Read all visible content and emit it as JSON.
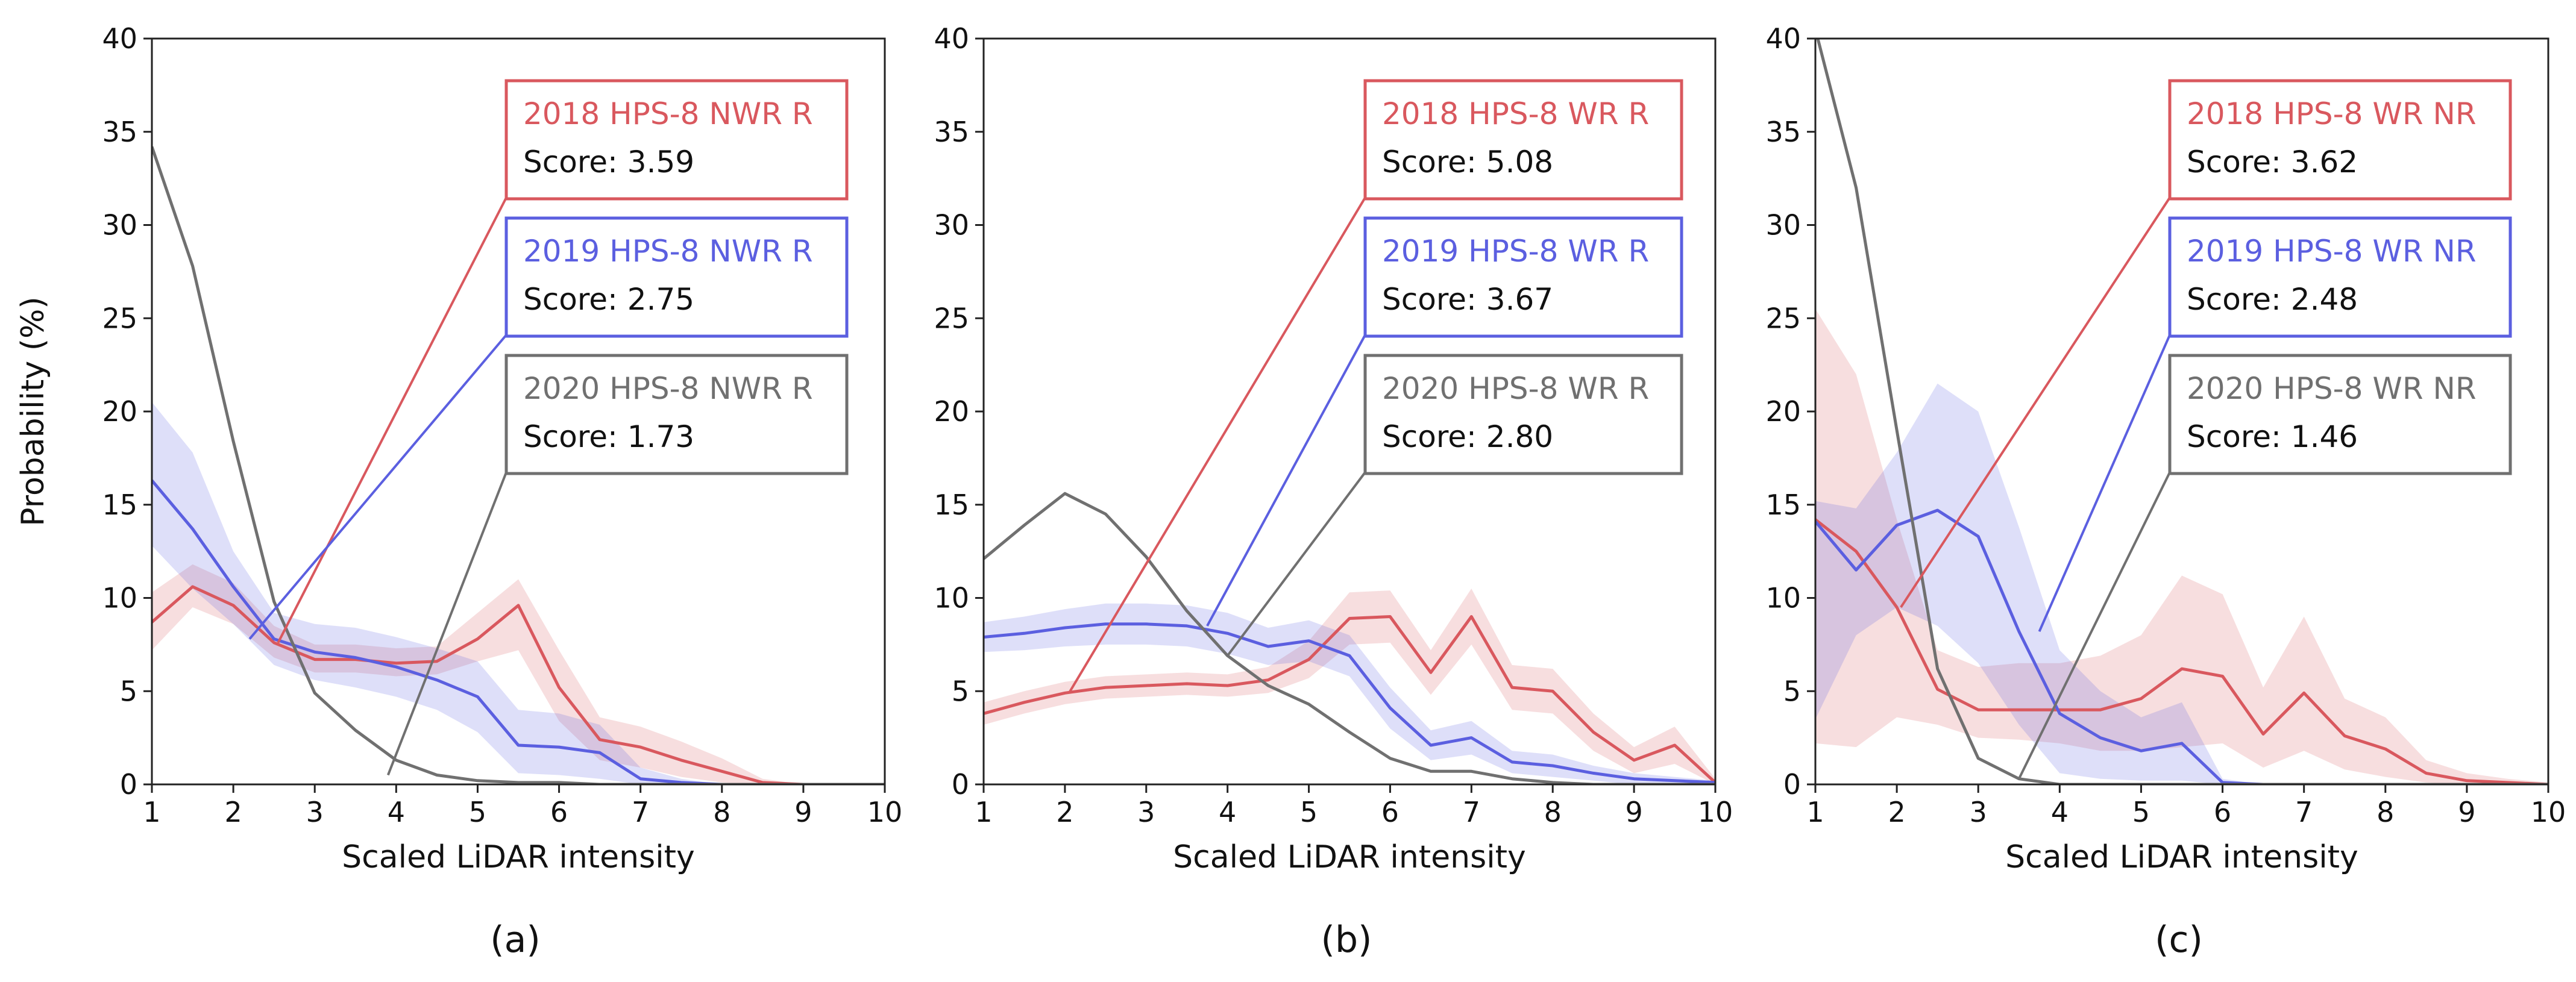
{
  "chart_data": [
    {
      "type": "line",
      "panel_label": "(a)",
      "xlabel": "Scaled LiDAR intensity",
      "ylabel": "Probability (%)",
      "xlim": [
        1,
        10
      ],
      "ylim": [
        0,
        40
      ],
      "x_ticks": [
        1,
        2,
        3,
        4,
        5,
        6,
        7,
        8,
        9,
        10
      ],
      "y_ticks": [
        0,
        5,
        10,
        15,
        20,
        25,
        30,
        35,
        40
      ],
      "x": [
        1,
        1.5,
        2,
        2.5,
        3,
        3.5,
        4,
        4.5,
        5,
        5.5,
        6,
        6.5,
        7,
        7.5,
        8,
        8.5,
        9,
        9.5,
        10
      ],
      "series": [
        {
          "name": "2018 HPS-8 NWR R",
          "score_label": "Score: 3.59",
          "color": "#d9585e",
          "values": [
            8.7,
            10.6,
            9.6,
            7.6,
            6.7,
            6.7,
            6.5,
            6.6,
            7.8,
            9.6,
            5.2,
            2.4,
            2.0,
            1.3,
            0.7,
            0.1,
            0.0,
            0.0,
            0.0
          ],
          "band_low": [
            7.2,
            9.5,
            8.6,
            6.8,
            6.0,
            6.0,
            5.8,
            5.9,
            6.6,
            7.2,
            3.4,
            1.3,
            0.9,
            0.4,
            0.1,
            0.0,
            0.0,
            0.0,
            0.0
          ],
          "band_high": [
            10.3,
            11.8,
            10.8,
            8.5,
            7.5,
            7.5,
            7.3,
            7.4,
            9.2,
            11.0,
            7.2,
            3.6,
            3.1,
            2.3,
            1.4,
            0.3,
            0.0,
            0.0,
            0.0
          ]
        },
        {
          "name": "2019 HPS-8 NWR R",
          "score_label": "Score: 2.75",
          "color": "#5b5fe0",
          "values": [
            16.3,
            13.7,
            10.6,
            7.8,
            7.1,
            6.8,
            6.3,
            5.6,
            4.7,
            2.1,
            2.0,
            1.7,
            0.3,
            0.1,
            0.0,
            0.0,
            0.0,
            0.0,
            0.0
          ],
          "band_low": [
            12.8,
            10.5,
            8.6,
            6.4,
            5.6,
            5.2,
            4.7,
            4.0,
            2.8,
            0.6,
            0.5,
            0.3,
            0.0,
            0.0,
            0.0,
            0.0,
            0.0,
            0.0,
            0.0
          ],
          "band_high": [
            20.5,
            17.8,
            12.5,
            9.2,
            8.6,
            8.4,
            7.9,
            7.3,
            6.6,
            4.0,
            3.8,
            3.2,
            0.9,
            0.3,
            0.0,
            0.0,
            0.0,
            0.0,
            0.0
          ]
        },
        {
          "name": "2020 HPS-8 NWR R",
          "score_label": "Score: 1.73",
          "color": "#707070",
          "values": [
            34.2,
            27.8,
            18.4,
            9.8,
            4.9,
            2.9,
            1.3,
            0.5,
            0.2,
            0.1,
            0.1,
            0.0,
            0.0,
            0.0,
            0.0,
            0.0,
            0.0,
            0.0,
            0.0
          ]
        }
      ]
    },
    {
      "type": "line",
      "panel_label": "(b)",
      "xlabel": "Scaled LiDAR intensity",
      "ylabel": "",
      "xlim": [
        1,
        10
      ],
      "ylim": [
        0,
        40
      ],
      "x_ticks": [
        1,
        2,
        3,
        4,
        5,
        6,
        7,
        8,
        9,
        10
      ],
      "y_ticks": [
        0,
        5,
        10,
        15,
        20,
        25,
        30,
        35,
        40
      ],
      "x": [
        1,
        1.5,
        2,
        2.5,
        3,
        3.5,
        4,
        4.5,
        5,
        5.5,
        6,
        6.5,
        7,
        7.5,
        8,
        8.5,
        9,
        9.5,
        10
      ],
      "series": [
        {
          "name": "2018 HPS-8 WR R",
          "score_label": "Score: 5.08",
          "color": "#d9585e",
          "values": [
            3.8,
            4.4,
            4.9,
            5.2,
            5.3,
            5.4,
            5.3,
            5.6,
            6.7,
            8.9,
            9.0,
            6.0,
            9.0,
            5.2,
            5.0,
            2.8,
            1.3,
            2.1,
            0.1
          ],
          "band_low": [
            3.2,
            3.8,
            4.3,
            4.6,
            4.7,
            4.8,
            4.7,
            4.9,
            5.7,
            7.5,
            7.6,
            4.8,
            7.5,
            4.0,
            3.8,
            1.8,
            0.6,
            1.1,
            0.0
          ],
          "band_high": [
            4.4,
            5.0,
            5.5,
            5.8,
            5.9,
            6.0,
            5.9,
            6.3,
            7.7,
            10.3,
            10.4,
            7.2,
            10.5,
            6.4,
            6.2,
            3.8,
            2.0,
            3.1,
            0.3
          ]
        },
        {
          "name": "2019 HPS-8 WR R",
          "score_label": "Score: 3.67",
          "color": "#5b5fe0",
          "values": [
            7.9,
            8.1,
            8.4,
            8.6,
            8.6,
            8.5,
            8.1,
            7.4,
            7.7,
            6.9,
            4.1,
            2.1,
            2.5,
            1.2,
            1.0,
            0.6,
            0.3,
            0.2,
            0.1
          ],
          "band_low": [
            7.1,
            7.2,
            7.4,
            7.5,
            7.5,
            7.4,
            7.0,
            6.4,
            6.6,
            5.8,
            3.0,
            1.3,
            1.6,
            0.6,
            0.4,
            0.2,
            0.0,
            0.0,
            0.0
          ],
          "band_high": [
            8.7,
            9.0,
            9.4,
            9.7,
            9.7,
            9.6,
            9.2,
            8.4,
            8.8,
            8.0,
            5.2,
            2.9,
            3.4,
            1.8,
            1.6,
            1.0,
            0.6,
            0.4,
            0.2
          ]
        },
        {
          "name": "2020 HPS-8 WR R",
          "score_label": "Score: 2.80",
          "color": "#707070",
          "values": [
            12.1,
            13.9,
            15.6,
            14.5,
            12.2,
            9.3,
            6.9,
            5.3,
            4.3,
            2.8,
            1.4,
            0.7,
            0.7,
            0.3,
            0.1,
            0.0,
            0.0,
            0.0,
            0.0
          ]
        }
      ]
    },
    {
      "type": "line",
      "panel_label": "(c)",
      "xlabel": "Scaled LiDAR intensity",
      "ylabel": "",
      "xlim": [
        1,
        10
      ],
      "ylim": [
        0,
        40
      ],
      "x_ticks": [
        1,
        2,
        3,
        4,
        5,
        6,
        7,
        8,
        9,
        10
      ],
      "y_ticks": [
        0,
        5,
        10,
        15,
        20,
        25,
        30,
        35,
        40
      ],
      "x": [
        1,
        1.5,
        2,
        2.5,
        3,
        3.5,
        4,
        4.5,
        5,
        5.5,
        6,
        6.5,
        7,
        7.5,
        8,
        8.5,
        9,
        9.5,
        10
      ],
      "series": [
        {
          "name": "2018 HPS-8 WR NR",
          "score_label": "Score: 3.62",
          "color": "#d9585e",
          "values": [
            14.2,
            12.5,
            9.5,
            5.1,
            4.0,
            4.0,
            4.0,
            4.0,
            4.6,
            6.2,
            5.8,
            2.7,
            4.9,
            2.6,
            1.9,
            0.6,
            0.2,
            0.1,
            0.0
          ],
          "band_low": [
            2.2,
            2.0,
            3.6,
            3.2,
            2.5,
            2.4,
            2.2,
            1.8,
            1.8,
            2.0,
            2.2,
            0.9,
            1.8,
            0.8,
            0.4,
            0.1,
            0.0,
            0.0,
            0.0
          ],
          "band_high": [
            25.5,
            22.0,
            14.2,
            7.2,
            6.3,
            6.5,
            6.5,
            6.9,
            8.0,
            11.2,
            10.2,
            5.2,
            9.0,
            4.6,
            3.6,
            1.3,
            0.6,
            0.3,
            0.1
          ]
        },
        {
          "name": "2019 HPS-8 WR NR",
          "score_label": "Score: 2.48",
          "color": "#5b5fe0",
          "values": [
            14.1,
            11.5,
            13.9,
            14.7,
            13.3,
            8.2,
            3.8,
            2.5,
            1.8,
            2.2,
            0.1,
            0.0,
            0.0,
            0.0,
            0.0,
            0.0,
            0.0,
            0.0,
            0.0
          ],
          "band_low": [
            3.5,
            8.0,
            9.5,
            8.5,
            6.5,
            3.2,
            0.6,
            0.3,
            0.2,
            0.2,
            0.0,
            0.0,
            0.0,
            0.0,
            0.0,
            0.0,
            0.0,
            0.0,
            0.0
          ],
          "band_high": [
            15.2,
            14.8,
            17.8,
            21.5,
            20.0,
            13.8,
            7.2,
            5.0,
            3.6,
            4.4,
            0.3,
            0.0,
            0.0,
            0.0,
            0.0,
            0.0,
            0.0,
            0.0,
            0.0
          ]
        },
        {
          "name": "2020 HPS-8 WR NR",
          "score_label": "Score: 1.46",
          "color": "#707070",
          "values": [
            40.5,
            32.0,
            19.0,
            6.2,
            1.4,
            0.3,
            0.0,
            0.0,
            0.0,
            0.0,
            0.0,
            0.0,
            0.0,
            0.0,
            0.0,
            0.0,
            0.0,
            0.0,
            0.0
          ]
        }
      ]
    }
  ]
}
